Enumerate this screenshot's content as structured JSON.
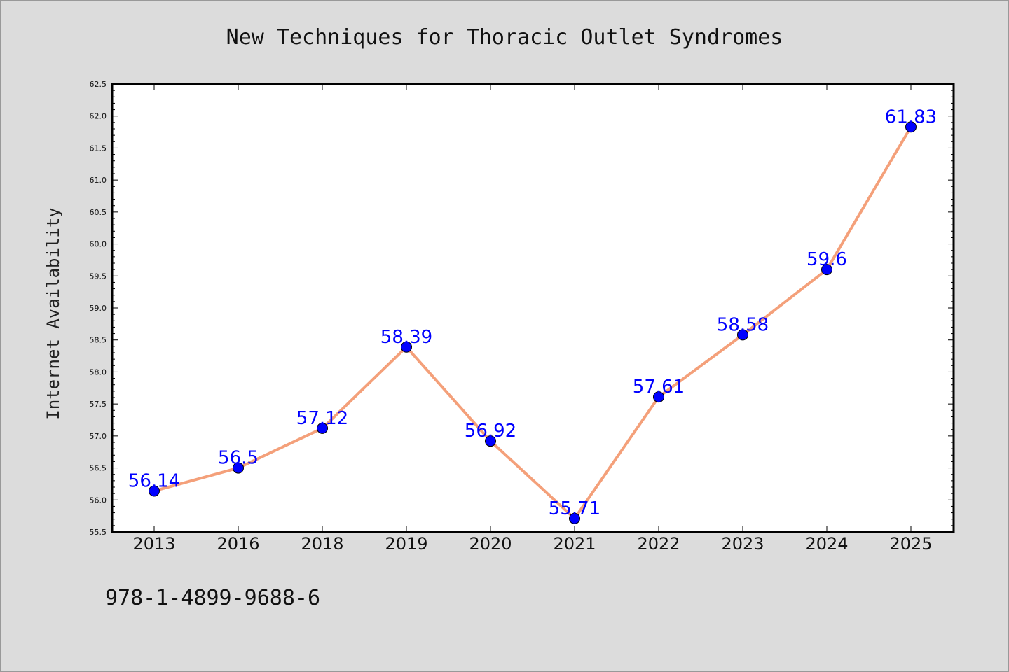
{
  "chart_data": {
    "type": "line",
    "title": "New Techniques for Thoracic Outlet Syndromes",
    "xlabel": "",
    "ylabel": "Internet Availability",
    "categories": [
      "2013",
      "2016",
      "2018",
      "2019",
      "2020",
      "2021",
      "2022",
      "2023",
      "2024",
      "2025"
    ],
    "values": [
      56.14,
      56.5,
      57.12,
      58.39,
      56.92,
      55.71,
      57.61,
      58.58,
      59.6,
      61.83
    ],
    "data_labels": [
      "56.14",
      "56.5",
      "57.12",
      "58.39",
      "56.92",
      "55.71",
      "57.61",
      "58.58",
      "59.6",
      "61.83"
    ],
    "ylim": [
      55.5,
      62.5
    ],
    "yticks": [
      "55.5",
      "56.0",
      "56.5",
      "57.0",
      "57.5",
      "58.0",
      "58.5",
      "59.0",
      "59.5",
      "60.0",
      "60.5",
      "61.0",
      "61.5",
      "62.0",
      "62.5"
    ],
    "grid": false,
    "colors": {
      "line": "#f4a07a",
      "marker": "#0000ff",
      "label": "#0000ff",
      "background": "#dcdcdc",
      "plot_background": "#ffffff"
    }
  },
  "footer_text": "978-1-4899-9688-6"
}
